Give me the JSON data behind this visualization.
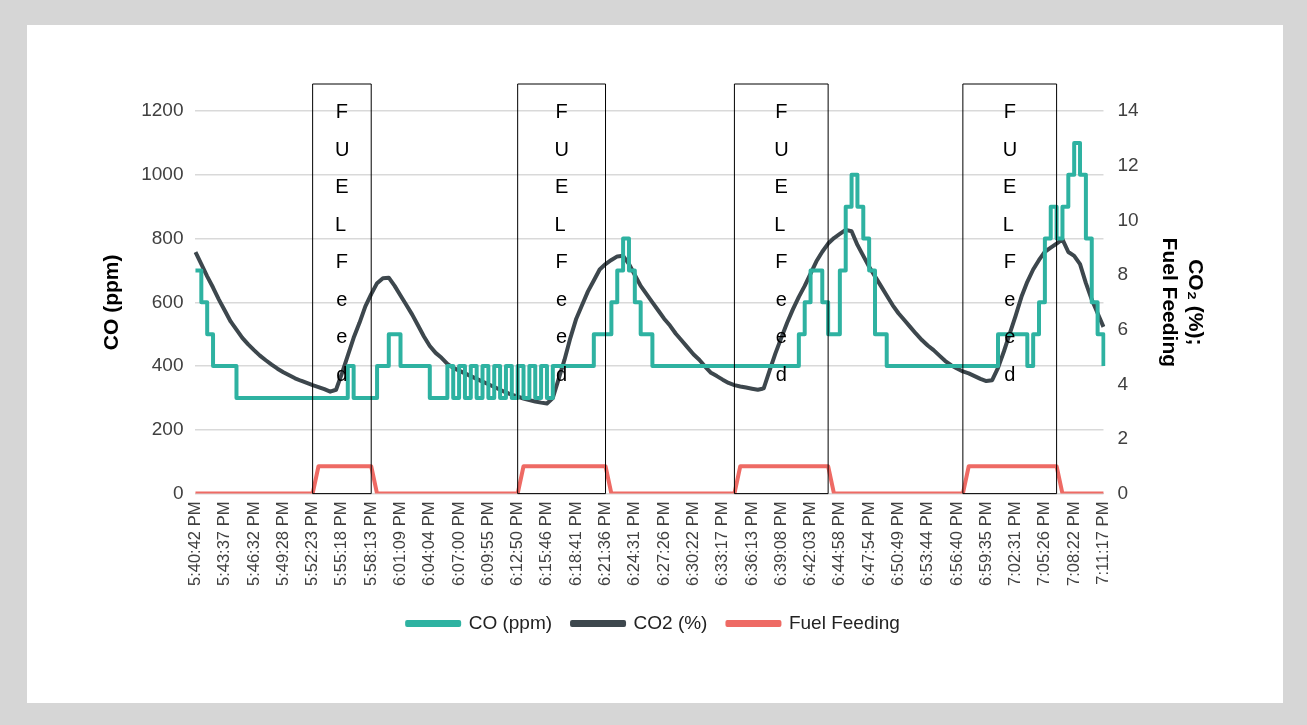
{
  "chart_data": {
    "type": "line",
    "ylabel": "CO (ppm)",
    "y2label": "CO₂ (%); Fuel Feeding",
    "categories": [
      "5:40:42 PM",
      null,
      null,
      null,
      null,
      "5:43:37 PM",
      null,
      null,
      null,
      null,
      "5:46:32 PM",
      null,
      null,
      null,
      null,
      "5:49:28 PM",
      null,
      null,
      null,
      null,
      "5:52:23 PM",
      null,
      null,
      null,
      null,
      "5:55:18 PM",
      null,
      null,
      null,
      null,
      "5:58:13 PM",
      null,
      null,
      null,
      null,
      "6:01:09 PM",
      null,
      null,
      null,
      null,
      "6:04:04 PM",
      null,
      null,
      null,
      null,
      "6:07:00 PM",
      null,
      null,
      null,
      null,
      "6:09:55 PM",
      null,
      null,
      null,
      null,
      "6:12:50 PM",
      null,
      null,
      null,
      null,
      "6:15:46 PM",
      null,
      null,
      null,
      null,
      "6:18:41 PM",
      null,
      null,
      null,
      null,
      "6:21:36 PM",
      null,
      null,
      null,
      null,
      "6:24:31 PM",
      null,
      null,
      null,
      null,
      "6:27:26 PM",
      null,
      null,
      null,
      null,
      "6:30:22 PM",
      null,
      null,
      null,
      null,
      "6:33:17 PM",
      null,
      null,
      null,
      null,
      "6:36:13 PM",
      null,
      null,
      null,
      null,
      "6:39:08 PM",
      null,
      null,
      null,
      null,
      "6:42:03 PM",
      null,
      null,
      null,
      null,
      "6:44:58 PM",
      null,
      null,
      null,
      null,
      "6:47:54 PM",
      null,
      null,
      null,
      null,
      "6:50:49 PM",
      null,
      null,
      null,
      null,
      "6:53:44 PM",
      null,
      null,
      null,
      null,
      "6:56:40 PM",
      null,
      null,
      null,
      null,
      "6:59:35 PM",
      null,
      null,
      null,
      null,
      "7:02:31 PM",
      null,
      null,
      null,
      null,
      "7:05:26 PM",
      null,
      null,
      null,
      null,
      "7:08:22 PM",
      null,
      null,
      null,
      null,
      "7:11:17 PM"
    ],
    "series": [
      {
        "name": "CO (ppm)",
        "type": "step",
        "color": "#2eb2a1",
        "values": [
          700,
          600,
          500,
          400,
          400,
          400,
          400,
          300,
          300,
          300,
          300,
          300,
          300,
          300,
          300,
          300,
          300,
          300,
          300,
          300,
          300,
          300,
          300,
          300,
          300,
          300,
          400,
          300,
          300,
          300,
          300,
          400,
          400,
          500,
          500,
          400,
          400,
          400,
          400,
          400,
          300,
          300,
          300,
          400,
          300,
          400,
          300,
          400,
          300,
          400,
          300,
          400,
          300,
          400,
          300,
          400,
          300,
          400,
          300,
          400,
          300,
          400,
          400,
          400,
          400,
          400,
          400,
          400,
          500,
          500,
          500,
          600,
          700,
          800,
          700,
          600,
          500,
          500,
          400,
          400,
          400,
          400,
          400,
          400,
          400,
          400,
          400,
          400,
          400,
          400,
          400,
          400,
          400,
          400,
          400,
          400,
          400,
          400,
          400,
          400,
          400,
          400,
          400,
          500,
          600,
          700,
          700,
          600,
          500,
          500,
          700,
          900,
          1000,
          900,
          800,
          700,
          500,
          500,
          400,
          400,
          400,
          400,
          400,
          400,
          400,
          400,
          400,
          400,
          400,
          400,
          400,
          400,
          400,
          400,
          400,
          400,
          400,
          500,
          500,
          500,
          500,
          500,
          400,
          500,
          600,
          800,
          900,
          800,
          900,
          1000,
          1100,
          1000,
          800,
          600,
          500,
          400
        ]
      },
      {
        "name": "CO2 (%)",
        "type": "line",
        "axis": "y2",
        "color": "#3d474d",
        "values": [
          8.84,
          8.4,
          7.95,
          7.54,
          7.1,
          6.7,
          6.3,
          6.0,
          5.7,
          5.46,
          5.25,
          5.05,
          4.88,
          4.72,
          4.57,
          4.44,
          4.33,
          4.22,
          4.13,
          4.05,
          3.97,
          3.9,
          3.82,
          3.73,
          3.8,
          4.4,
          5.05,
          5.7,
          6.25,
          6.85,
          7.3,
          7.7,
          7.88,
          7.9,
          7.6,
          7.25,
          6.9,
          6.55,
          6.15,
          5.75,
          5.4,
          5.15,
          4.97,
          4.75,
          4.6,
          4.5,
          4.4,
          4.3,
          4.2,
          4.1,
          4.0,
          3.9,
          3.8,
          3.7,
          3.62,
          3.55,
          3.48,
          3.42,
          3.37,
          3.33,
          3.3,
          3.5,
          4.2,
          4.9,
          5.7,
          6.4,
          6.9,
          7.4,
          7.8,
          8.2,
          8.4,
          8.55,
          8.68,
          8.7,
          8.4,
          8.0,
          7.6,
          7.3,
          7.0,
          6.7,
          6.4,
          6.15,
          5.85,
          5.6,
          5.35,
          5.1,
          4.9,
          4.65,
          4.42,
          4.3,
          4.17,
          4.05,
          3.97,
          3.92,
          3.88,
          3.84,
          3.8,
          3.85,
          4.5,
          5.13,
          5.7,
          6.25,
          6.75,
          7.2,
          7.6,
          8.05,
          8.5,
          8.85,
          9.15,
          9.35,
          9.5,
          9.65,
          9.6,
          9.1,
          8.7,
          8.3,
          7.95,
          7.6,
          7.25,
          6.9,
          6.6,
          6.35,
          6.1,
          5.85,
          5.62,
          5.42,
          5.25,
          5.05,
          4.85,
          4.7,
          4.58,
          4.47,
          4.4,
          4.3,
          4.2,
          4.12,
          4.15,
          4.6,
          5.2,
          5.85,
          6.5,
          7.2,
          7.75,
          8.2,
          8.55,
          8.85,
          9.0,
          9.15,
          9.3,
          8.84,
          8.7,
          8.4,
          7.7,
          7.1,
          6.6,
          6.1
        ]
      },
      {
        "name": "Fuel Feeding",
        "type": "line",
        "axis": "y2",
        "color": "#ee6a64",
        "values": [
          0,
          0,
          0,
          0,
          0,
          0,
          0,
          0,
          0,
          0,
          0,
          0,
          0,
          0,
          0,
          0,
          0,
          0,
          0,
          0,
          0,
          1,
          1,
          1,
          1,
          1,
          1,
          1,
          1,
          1,
          1,
          0,
          0,
          0,
          0,
          0,
          0,
          0,
          0,
          0,
          0,
          0,
          0,
          0,
          0,
          0,
          0,
          0,
          0,
          0,
          0,
          0,
          0,
          0,
          0,
          0,
          1,
          1,
          1,
          1,
          1,
          1,
          1,
          1,
          1,
          1,
          1,
          1,
          1,
          1,
          1,
          0,
          0,
          0,
          0,
          0,
          0,
          0,
          0,
          0,
          0,
          0,
          0,
          0,
          0,
          0,
          0,
          0,
          0,
          0,
          0,
          0,
          0,
          1,
          1,
          1,
          1,
          1,
          1,
          1,
          1,
          1,
          1,
          1,
          1,
          1,
          1,
          1,
          1,
          0,
          0,
          0,
          0,
          0,
          0,
          0,
          0,
          0,
          0,
          0,
          0,
          0,
          0,
          0,
          0,
          0,
          0,
          0,
          0,
          0,
          0,
          0,
          1,
          1,
          1,
          1,
          1,
          1,
          1,
          1,
          1,
          1,
          1,
          1,
          1,
          1,
          1,
          1,
          0,
          0,
          0,
          0,
          0,
          0,
          0,
          0
        ]
      }
    ],
    "ylim": [
      0,
      1200
    ],
    "yticks": [
      0,
      200,
      400,
      600,
      800,
      1000,
      1200
    ],
    "y2lim": [
      0,
      14
    ],
    "y2ticks": [
      0,
      2,
      4,
      6,
      8,
      10,
      12,
      14
    ],
    "annotations": [
      "FUEL Feed",
      "FUEL Feed",
      "FUEL Feed",
      "FUEL Feed"
    ],
    "grid": "y",
    "legend": "bottom"
  }
}
